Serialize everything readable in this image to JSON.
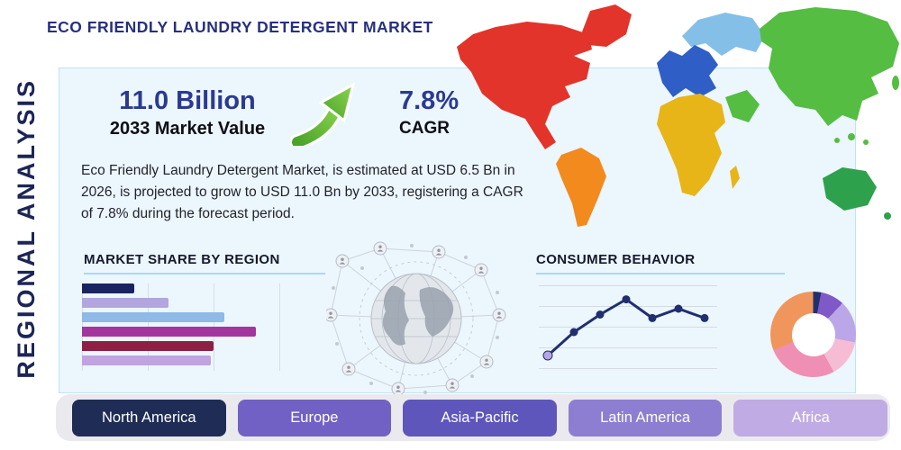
{
  "page": {
    "title": "ECO FRIENDLY LAUNDRY DETERGENT MARKET",
    "side_label": "REGIONAL ANALYSIS"
  },
  "highlights": {
    "market_value": "11.0 Billion",
    "market_value_label": "2033 Market Value",
    "cagr_value": "7.8%",
    "cagr_label": "CAGR",
    "description": "Eco Friendly Laundry Detergent Market, is estimated at USD 6.5 Bn in 2026, is projected to grow to USD 11.0 Bn by 2033, registering a CAGR of 7.8% during the forecast period."
  },
  "sections": {
    "market_share_title": "MARKET SHARE BY REGION",
    "consumer_behavior_title": "CONSUMER BEHAVIOR"
  },
  "region_buttons": [
    {
      "label": "North America",
      "color": "#1f2d56"
    },
    {
      "label": "Europe",
      "color": "#7161c4"
    },
    {
      "label": "Asia-Pacific",
      "color": "#5e56bb"
    },
    {
      "label": "Latin America",
      "color": "#8d7ed2"
    },
    {
      "label": "Africa",
      "color": "#c0abe4"
    }
  ],
  "map_colors": {
    "north_america": "#e2342b",
    "greenland": "#e2342b",
    "south_america": "#f28a1e",
    "europe": "#2e5ec6",
    "north_europe_russia": "#84bfe8",
    "asia": "#54bd42",
    "middle_east": "#54bd42",
    "africa": "#e7b517",
    "madagascar": "#e7b517",
    "australia": "#2da14c",
    "accent_green_arrow": "#5fb832",
    "panel_blue": "#ecf6fd"
  },
  "chart_data": [
    {
      "type": "bar",
      "title": "MARKET SHARE BY REGION",
      "orientation": "horizontal",
      "values": [
        20,
        33,
        54,
        66,
        50,
        49
      ],
      "xlim": [
        0,
        100
      ],
      "colors": [
        "#1a2361",
        "#b3a5de",
        "#8fb9e6",
        "#a4359e",
        "#8e2044",
        "#c2a3e2"
      ],
      "grid": true
    },
    {
      "type": "line",
      "title": "CONSUMER BEHAVIOR",
      "x": [
        1,
        2,
        3,
        4,
        5,
        6,
        7
      ],
      "values": [
        1.0,
        3.0,
        4.5,
        5.8,
        4.2,
        5.0,
        4.2
      ],
      "ylim": [
        0,
        7
      ],
      "color": "#20306e",
      "first_marker_color": "#b7a6e4",
      "grid": true
    },
    {
      "type": "pie",
      "subtype": "donut",
      "segments": [
        {
          "value": 3,
          "color": "#20306e"
        },
        {
          "value": 9,
          "color": "#8059c8"
        },
        {
          "value": 16,
          "color": "#bba7e8"
        },
        {
          "value": 14,
          "color": "#f6bcd4"
        },
        {
          "value": 27,
          "color": "#ef8fb4"
        },
        {
          "value": 31,
          "color": "#f0965c"
        }
      ]
    }
  ]
}
